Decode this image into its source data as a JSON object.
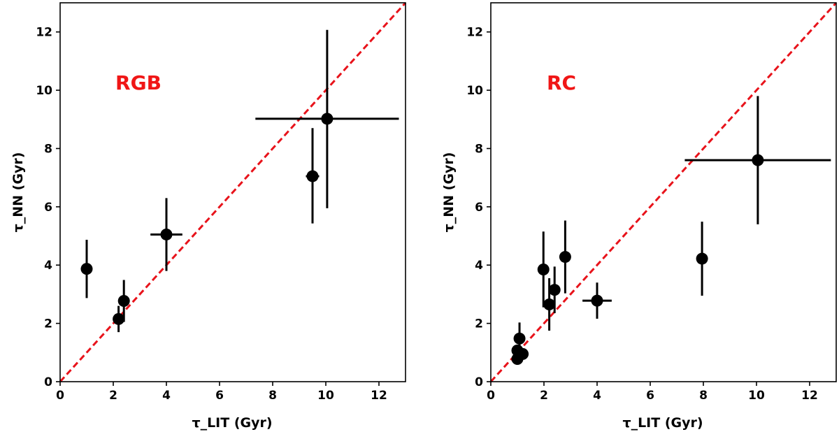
{
  "colors": {
    "points": "#000000",
    "reference_line": "#e8131b",
    "panel_label": "#f01616"
  },
  "chart_data": [
    {
      "type": "scatter",
      "panel_label": "RGB",
      "xlabel": "τ_LIT (Gyr)",
      "ylabel": "τ_NN (Gyr)",
      "xlim": [
        0,
        13
      ],
      "ylim": [
        0,
        13
      ],
      "xticks": [
        0,
        2,
        4,
        6,
        8,
        10,
        12
      ],
      "yticks": [
        0,
        2,
        4,
        6,
        8,
        10,
        12
      ],
      "reference_line": "y = x",
      "points": [
        {
          "x": 1.0,
          "y": 3.87,
          "xerr": 0,
          "yerr": [
            1.0,
            1.0
          ]
        },
        {
          "x": 2.2,
          "y": 2.15,
          "xerr": 0.2,
          "yerr": [
            0.45,
            0.45
          ]
        },
        {
          "x": 2.4,
          "y": 2.77,
          "xerr": 0,
          "yerr": [
            0.72,
            0.72
          ]
        },
        {
          "x": 4.0,
          "y": 5.05,
          "xerr": 0.6,
          "yerr": [
            1.25,
            1.25
          ]
        },
        {
          "x": 9.5,
          "y": 7.05,
          "xerr": 0.25,
          "yerr": [
            1.62,
            1.65
          ]
        },
        {
          "x": 10.05,
          "y": 9.02,
          "xerr": 2.7,
          "yerr": [
            3.07,
            3.05
          ]
        }
      ]
    },
    {
      "type": "scatter",
      "panel_label": "RC",
      "xlabel": "τ_LIT (Gyr)",
      "ylabel": "τ_NN (Gyr)",
      "xlim": [
        0,
        13
      ],
      "ylim": [
        0,
        13
      ],
      "xticks": [
        0,
        2,
        4,
        6,
        8,
        10,
        12
      ],
      "yticks": [
        0,
        2,
        4,
        6,
        8,
        10,
        12
      ],
      "reference_line": "y = x",
      "points": [
        {
          "x": 1.0,
          "y": 0.78,
          "xerr": 0,
          "yerr": [
            0,
            0
          ]
        },
        {
          "x": 1.0,
          "y": 1.07,
          "xerr": 0,
          "yerr": [
            0,
            0
          ]
        },
        {
          "x": 1.08,
          "y": 1.48,
          "xerr": 0,
          "yerr": [
            0.55,
            0.55
          ]
        },
        {
          "x": 1.2,
          "y": 0.95,
          "xerr": 0,
          "yerr": [
            0,
            0
          ]
        },
        {
          "x": 1.98,
          "y": 3.85,
          "xerr": 0,
          "yerr": [
            1.3,
            1.3
          ]
        },
        {
          "x": 2.2,
          "y": 2.65,
          "xerr": 0.2,
          "yerr": [
            0.9,
            0.9
          ]
        },
        {
          "x": 2.4,
          "y": 3.15,
          "xerr": 0,
          "yerr": [
            0.8,
            0.8
          ]
        },
        {
          "x": 2.8,
          "y": 4.28,
          "xerr": 0,
          "yerr": [
            1.25,
            1.25
          ]
        },
        {
          "x": 4.0,
          "y": 2.78,
          "xerr": 0.55,
          "yerr": [
            0.62,
            0.62
          ]
        },
        {
          "x": 7.95,
          "y": 4.22,
          "xerr": 0,
          "yerr": [
            1.27,
            1.27
          ]
        },
        {
          "x": 10.05,
          "y": 7.6,
          "xerr": 2.75,
          "yerr": [
            2.2,
            2.2
          ]
        }
      ]
    }
  ]
}
